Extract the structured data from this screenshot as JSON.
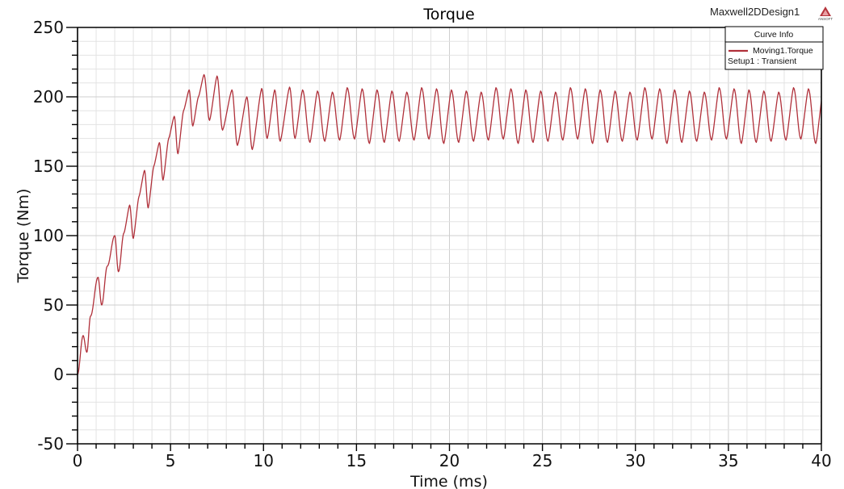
{
  "header": {
    "design_name": "Maxwell2DDesign1",
    "logo_text": "ANSOFT"
  },
  "legend": {
    "title": "Curve Info",
    "entries": [
      {
        "name": "Moving1.Torque",
        "sub": "Setup1 : Transient",
        "color": "#b0303a"
      }
    ]
  },
  "chart_data": {
    "type": "line",
    "title": "Torque",
    "xlabel": "Time (ms)",
    "ylabel": "Torque (Nm)",
    "xlim": [
      0,
      40
    ],
    "ylim": [
      -50,
      250
    ],
    "xticks": [
      0,
      5,
      10,
      15,
      20,
      25,
      30,
      35,
      40
    ],
    "yticks": [
      -50,
      0,
      50,
      100,
      150,
      200,
      250
    ],
    "x_minor_step": 1,
    "y_minor_step": 10,
    "grid": true,
    "legend_position": "top-right",
    "series": [
      {
        "name": "Moving1.Torque",
        "setup": "Setup1 : Transient",
        "color": "#b0303a",
        "extrema_x": [
          0,
          0.3,
          0.5,
          0.7,
          1.1,
          1.3,
          1.6,
          2.0,
          2.2,
          2.5,
          2.8,
          3.0,
          3.3,
          3.6,
          3.8,
          4.1,
          4.4,
          4.6,
          4.9,
          5.2,
          5.4,
          5.7,
          6.0,
          6.2,
          6.5,
          6.8,
          7.1,
          7.5,
          7.8,
          8.3,
          8.6,
          9.1,
          9.4,
          9.9,
          10.2,
          10.6,
          10.9,
          11.4,
          11.7
        ],
        "extrema_y": [
          0,
          28,
          16,
          42,
          70,
          50,
          78,
          100,
          74,
          102,
          122,
          98,
          128,
          147,
          120,
          150,
          167,
          140,
          170,
          186,
          159,
          190,
          205,
          179,
          200,
          216,
          183,
          215,
          176,
          205,
          165,
          200,
          162,
          206,
          170,
          205,
          168,
          207,
          170
        ],
        "steady_state": {
          "start_ms": 11.7,
          "end_ms": 40,
          "period_ms": 0.8,
          "peak": 205,
          "trough": 168
        }
      }
    ]
  }
}
